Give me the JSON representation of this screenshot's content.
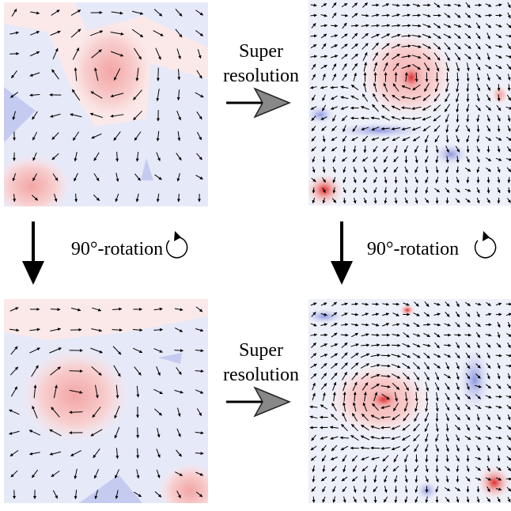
{
  "super_resolution_top": [
    "Super",
    "resolution"
  ],
  "super_resolution_bottom": [
    "Super",
    "resolution"
  ],
  "rotation_left": "90°-rotation",
  "rotation_right": "90°-rotation"
}
